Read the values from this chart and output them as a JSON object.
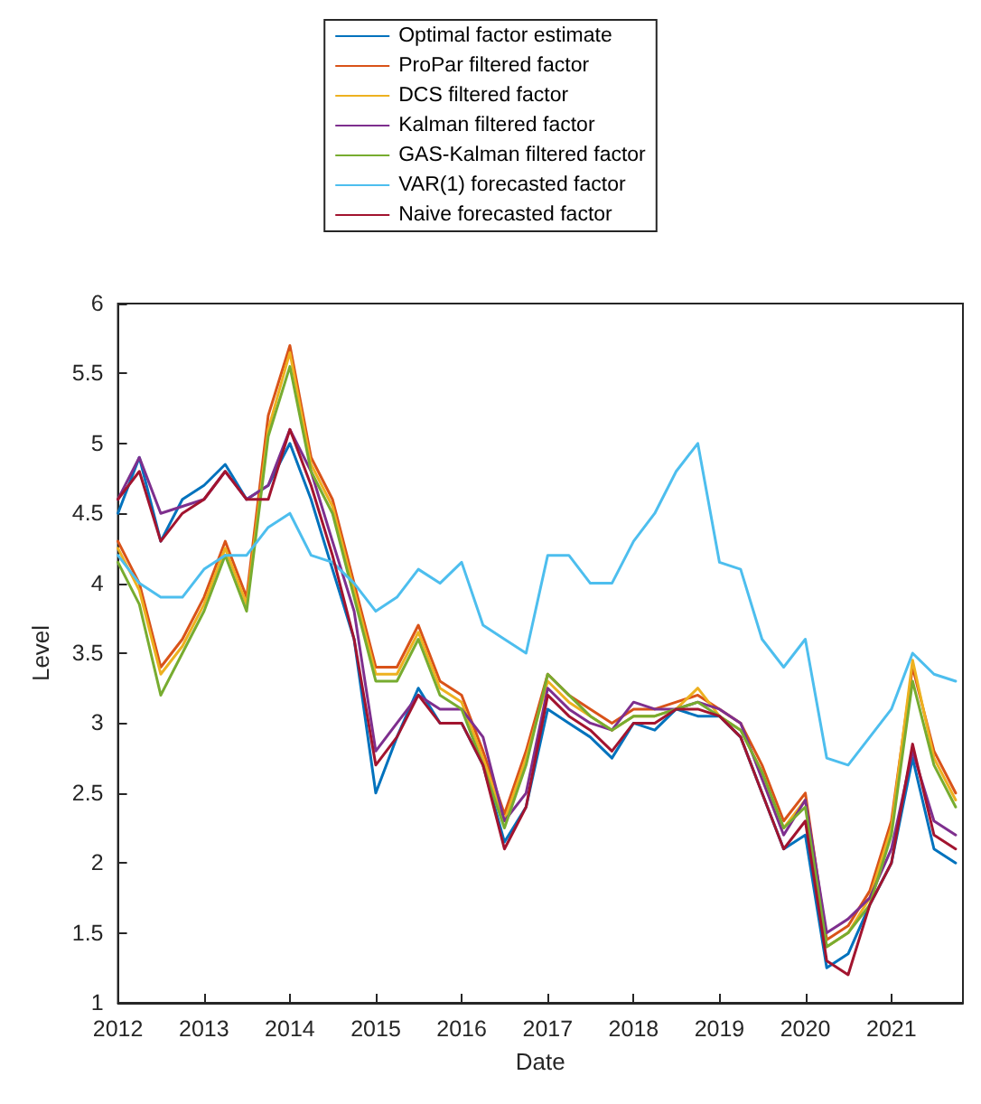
{
  "chart_data": {
    "type": "line",
    "xlabel": "Date",
    "ylabel": "Level",
    "x": [
      "2012-01",
      "2012-04",
      "2012-07",
      "2012-10",
      "2013-01",
      "2013-04",
      "2013-07",
      "2013-10",
      "2014-01",
      "2014-04",
      "2014-07",
      "2014-10",
      "2015-01",
      "2015-04",
      "2015-07",
      "2015-10",
      "2016-01",
      "2016-04",
      "2016-07",
      "2016-10",
      "2017-01",
      "2017-04",
      "2017-07",
      "2017-10",
      "2018-01",
      "2018-04",
      "2018-07",
      "2018-10",
      "2019-01",
      "2019-04",
      "2019-07",
      "2019-10",
      "2020-01",
      "2020-04",
      "2020-07",
      "2020-10",
      "2021-01",
      "2021-04",
      "2021-07",
      "2021-10"
    ],
    "series": [
      {
        "name": "Optimal factor estimate",
        "color": "#0072bd",
        "values": [
          4.5,
          4.9,
          4.3,
          4.6,
          4.7,
          4.85,
          4.6,
          4.7,
          5.0,
          4.6,
          4.1,
          3.6,
          2.5,
          2.9,
          3.25,
          3.0,
          3.0,
          2.7,
          2.15,
          2.4,
          3.1,
          3.0,
          2.9,
          2.75,
          3.0,
          2.95,
          3.1,
          3.05,
          3.05,
          2.9,
          2.5,
          2.1,
          2.2,
          1.25,
          1.35,
          1.7,
          2.0,
          2.75,
          2.1,
          2.0
        ]
      },
      {
        "name": "ProPar filtered factor",
        "color": "#d95319",
        "values": [
          4.3,
          4.0,
          3.4,
          3.6,
          3.9,
          4.3,
          3.9,
          5.2,
          5.7,
          4.9,
          4.6,
          4.0,
          3.4,
          3.4,
          3.7,
          3.3,
          3.2,
          2.8,
          2.35,
          2.8,
          3.35,
          3.2,
          3.1,
          3.0,
          3.1,
          3.1,
          3.15,
          3.2,
          3.1,
          3.0,
          2.7,
          2.3,
          2.5,
          1.45,
          1.55,
          1.8,
          2.3,
          3.4,
          2.8,
          2.5
        ]
      },
      {
        "name": "DCS filtered factor",
        "color": "#edb120",
        "values": [
          4.25,
          3.95,
          3.35,
          3.55,
          3.85,
          4.25,
          3.85,
          5.1,
          5.65,
          4.85,
          4.55,
          3.95,
          3.35,
          3.35,
          3.65,
          3.25,
          3.15,
          2.75,
          2.3,
          2.75,
          3.3,
          3.15,
          3.05,
          2.95,
          3.05,
          3.05,
          3.1,
          3.25,
          3.05,
          2.95,
          2.65,
          2.25,
          2.45,
          1.4,
          1.5,
          1.75,
          2.25,
          3.45,
          2.75,
          2.45
        ]
      },
      {
        "name": "Kalman filtered factor",
        "color": "#7e2f8e",
        "values": [
          4.6,
          4.9,
          4.5,
          4.55,
          4.6,
          4.8,
          4.6,
          4.7,
          5.1,
          4.8,
          4.3,
          3.8,
          2.8,
          3.0,
          3.2,
          3.1,
          3.1,
          2.9,
          2.3,
          2.5,
          3.25,
          3.1,
          3.0,
          2.95,
          3.15,
          3.1,
          3.1,
          3.15,
          3.1,
          3.0,
          2.6,
          2.2,
          2.45,
          1.5,
          1.6,
          1.75,
          2.1,
          2.8,
          2.3,
          2.2
        ]
      },
      {
        "name": "GAS-Kalman filtered factor",
        "color": "#77ac30",
        "values": [
          4.15,
          3.85,
          3.2,
          3.5,
          3.8,
          4.2,
          3.8,
          5.05,
          5.55,
          4.8,
          4.5,
          3.9,
          3.3,
          3.3,
          3.6,
          3.2,
          3.1,
          2.7,
          2.25,
          2.7,
          3.35,
          3.2,
          3.05,
          2.95,
          3.05,
          3.05,
          3.1,
          3.15,
          3.05,
          2.95,
          2.65,
          2.25,
          2.4,
          1.4,
          1.5,
          1.7,
          2.2,
          3.3,
          2.7,
          2.4
        ]
      },
      {
        "name": "VAR(1) forecasted factor",
        "color": "#4dbeee",
        "values": [
          4.2,
          4.0,
          3.9,
          3.9,
          4.1,
          4.2,
          4.2,
          4.4,
          4.5,
          4.2,
          4.15,
          4.0,
          3.8,
          3.9,
          4.1,
          4.0,
          4.15,
          3.7,
          3.6,
          3.5,
          4.2,
          4.2,
          4.0,
          4.0,
          4.3,
          4.5,
          4.8,
          5.0,
          4.15,
          4.1,
          3.6,
          3.4,
          3.6,
          2.75,
          2.7,
          2.9,
          3.1,
          3.5,
          3.35,
          3.3
        ]
      },
      {
        "name": "Naive forecasted factor",
        "color": "#a2142f",
        "values": [
          4.6,
          4.8,
          4.3,
          4.5,
          4.6,
          4.8,
          4.6,
          4.6,
          5.1,
          4.7,
          4.2,
          3.6,
          2.7,
          2.9,
          3.2,
          3.0,
          3.0,
          2.7,
          2.1,
          2.4,
          3.2,
          3.05,
          2.95,
          2.8,
          3.0,
          3.0,
          3.1,
          3.1,
          3.05,
          2.9,
          2.5,
          2.1,
          2.3,
          1.3,
          1.2,
          1.7,
          2.0,
          2.85,
          2.2,
          2.1
        ]
      }
    ],
    "xlim": [
      "2012-01",
      "2021-11"
    ],
    "xticks": [
      "2012",
      "2013",
      "2014",
      "2015",
      "2016",
      "2017",
      "2018",
      "2019",
      "2020",
      "2021"
    ],
    "ylim": [
      1,
      6
    ],
    "yticks": [
      1,
      1.5,
      2,
      2.5,
      3,
      3.5,
      4,
      4.5,
      5,
      5.5,
      6
    ],
    "grid": false,
    "legend": "top",
    "marker": "none",
    "line_style": "solid"
  }
}
